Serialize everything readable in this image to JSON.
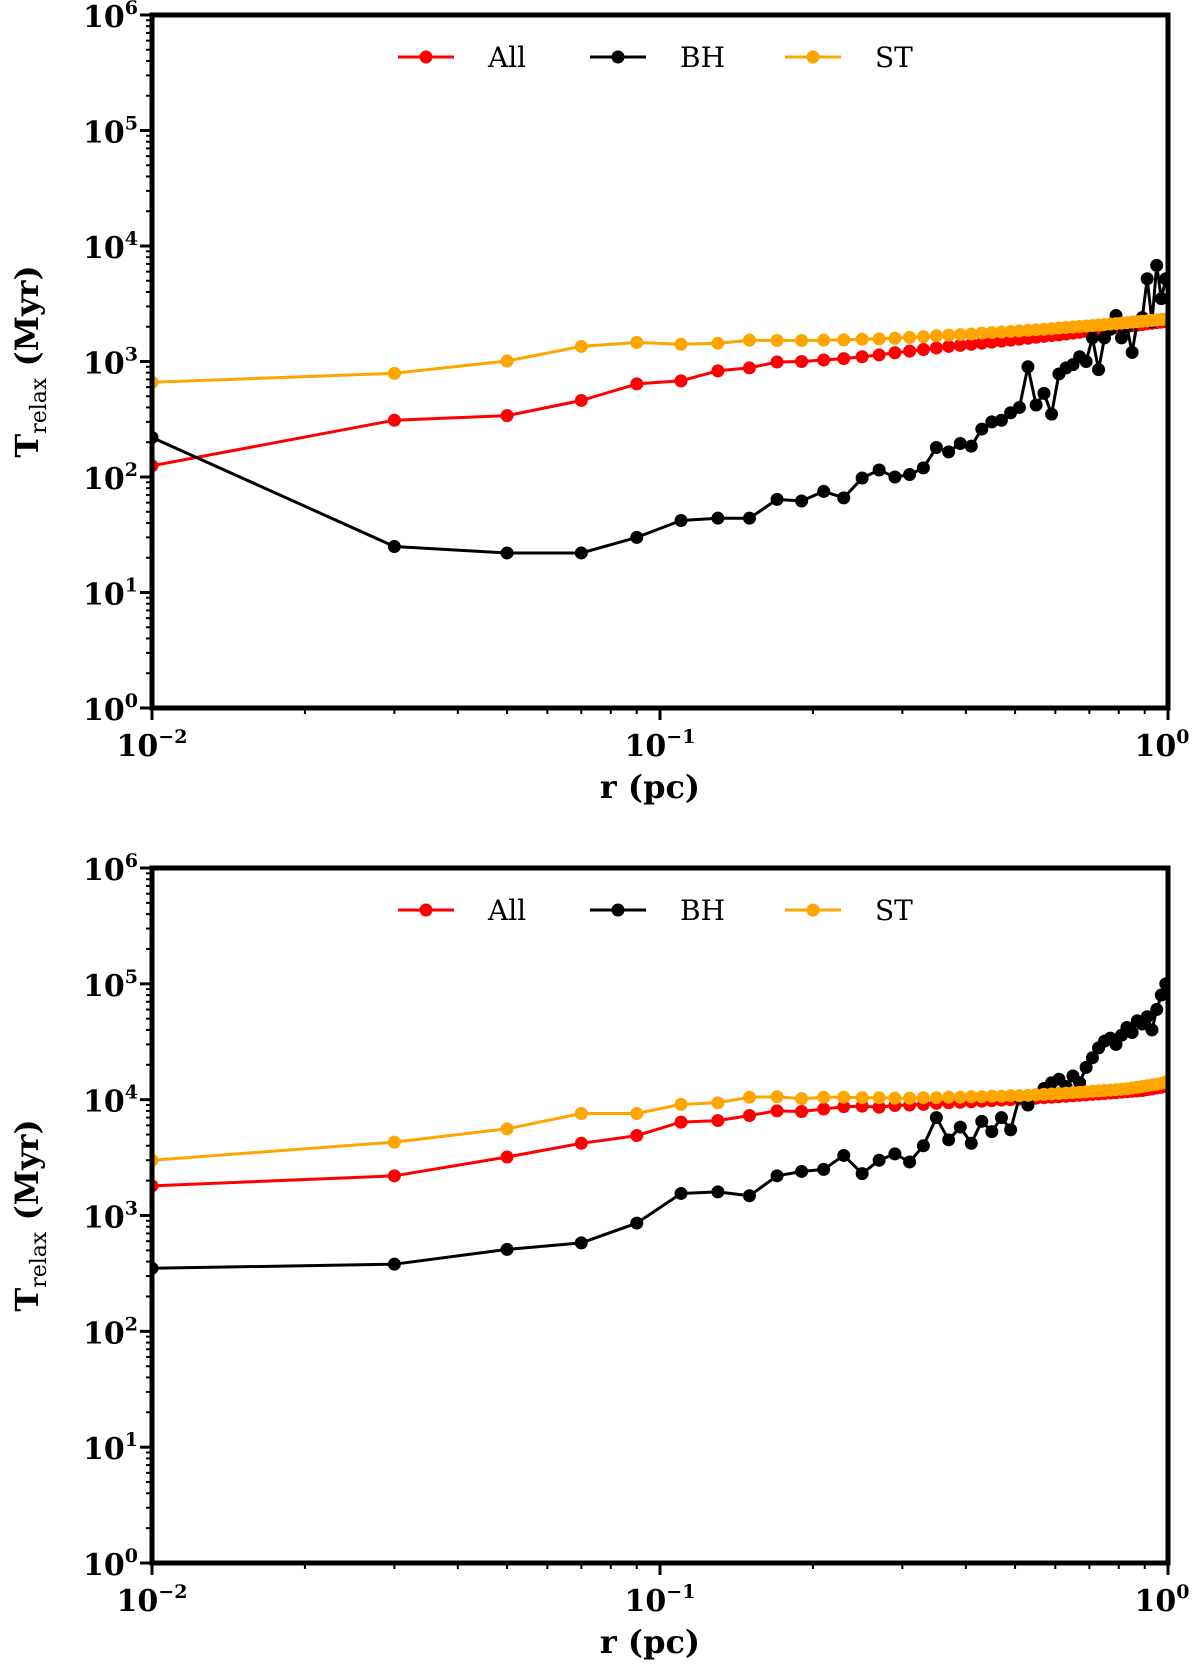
{
  "chart_data": [
    {
      "type": "line",
      "panel": "top",
      "title": "",
      "xlabel": "r (pc)",
      "ylabel_main": "T",
      "ylabel_sub": "relax",
      "ylabel_unit": "(Myr)",
      "xscale": "log",
      "yscale": "log",
      "xlim": [
        0.01,
        1
      ],
      "ylim": [
        1,
        1000000
      ],
      "x_ticks": [
        {
          "base": "10",
          "exp": "−2"
        },
        {
          "base": "10",
          "exp": "−1"
        },
        {
          "base": "10",
          "exp": "0"
        }
      ],
      "y_ticks": [
        {
          "base": "10",
          "exp": "0"
        },
        {
          "base": "10",
          "exp": "1"
        },
        {
          "base": "10",
          "exp": "2"
        },
        {
          "base": "10",
          "exp": "3"
        },
        {
          "base": "10",
          "exp": "4"
        },
        {
          "base": "10",
          "exp": "5"
        },
        {
          "base": "10",
          "exp": "6"
        }
      ],
      "legend_position": "upper-center",
      "series": [
        {
          "name": "All",
          "color": "#ff0000",
          "x": [
            0.01,
            0.03,
            0.05,
            0.07,
            0.09,
            0.11,
            0.13,
            0.15,
            0.17,
            0.19,
            0.21,
            0.23,
            0.25,
            0.27,
            0.29,
            0.31,
            0.33,
            0.35,
            0.37,
            0.39,
            0.41,
            0.43,
            0.45,
            0.47,
            0.49,
            0.51,
            0.53,
            0.55,
            0.57,
            0.59,
            0.61,
            0.63,
            0.65,
            0.67,
            0.69,
            0.71,
            0.73,
            0.75,
            0.77,
            0.79,
            0.81,
            0.83,
            0.85,
            0.87,
            0.89,
            0.91,
            0.93,
            0.95,
            0.97,
            0.99
          ],
          "y": [
            125,
            310,
            340,
            460,
            640,
            680,
            830,
            880,
            990,
            1000,
            1030,
            1060,
            1100,
            1140,
            1190,
            1230,
            1270,
            1310,
            1350,
            1380,
            1410,
            1440,
            1470,
            1500,
            1530,
            1560,
            1590,
            1620,
            1650,
            1680,
            1700,
            1730,
            1760,
            1790,
            1820,
            1840,
            1870,
            1900,
            1930,
            1960,
            1980,
            2010,
            2040,
            2060,
            2090,
            2120,
            2140,
            2170,
            2190,
            2220
          ]
        },
        {
          "name": "BH",
          "color": "#000000",
          "x": [
            0.01,
            0.03,
            0.05,
            0.07,
            0.09,
            0.11,
            0.13,
            0.15,
            0.17,
            0.19,
            0.21,
            0.23,
            0.25,
            0.27,
            0.29,
            0.31,
            0.33,
            0.35,
            0.37,
            0.39,
            0.41,
            0.43,
            0.45,
            0.47,
            0.49,
            0.51,
            0.53,
            0.55,
            0.57,
            0.59,
            0.61,
            0.63,
            0.65,
            0.67,
            0.69,
            0.71,
            0.73,
            0.75,
            0.77,
            0.79,
            0.81,
            0.83,
            0.85,
            0.87,
            0.89,
            0.91,
            0.93,
            0.95,
            0.97,
            0.99
          ],
          "y": [
            220,
            25,
            22,
            22,
            30,
            42,
            44,
            44,
            64,
            62,
            75,
            66,
            98,
            115,
            100,
            105,
            120,
            180,
            165,
            195,
            185,
            260,
            300,
            310,
            360,
            400,
            900,
            420,
            530,
            350,
            780,
            880,
            940,
            1100,
            1000,
            1600,
            850,
            1600,
            1900,
            2500,
            1600,
            2000,
            1200,
            2200,
            2400,
            5200,
            2200,
            6800,
            3500,
            5200
          ]
        },
        {
          "name": "ST",
          "color": "#ffa500",
          "x": [
            0.01,
            0.03,
            0.05,
            0.07,
            0.09,
            0.11,
            0.13,
            0.15,
            0.17,
            0.19,
            0.21,
            0.23,
            0.25,
            0.27,
            0.29,
            0.31,
            0.33,
            0.35,
            0.37,
            0.39,
            0.41,
            0.43,
            0.45,
            0.47,
            0.49,
            0.51,
            0.53,
            0.55,
            0.57,
            0.59,
            0.61,
            0.63,
            0.65,
            0.67,
            0.69,
            0.71,
            0.73,
            0.75,
            0.77,
            0.79,
            0.81,
            0.83,
            0.85,
            0.87,
            0.89,
            0.91,
            0.93,
            0.95,
            0.97,
            0.99
          ],
          "y": [
            660,
            790,
            1010,
            1350,
            1460,
            1410,
            1440,
            1530,
            1520,
            1520,
            1530,
            1540,
            1560,
            1570,
            1590,
            1620,
            1640,
            1670,
            1690,
            1710,
            1730,
            1760,
            1780,
            1800,
            1820,
            1840,
            1860,
            1880,
            1900,
            1920,
            1950,
            1970,
            1990,
            2010,
            2030,
            2050,
            2070,
            2090,
            2110,
            2130,
            2150,
            2170,
            2190,
            2210,
            2230,
            2250,
            2270,
            2290,
            2310,
            2330
          ]
        }
      ]
    },
    {
      "type": "line",
      "panel": "bottom",
      "title": "",
      "xlabel": "r (pc)",
      "ylabel_main": "T",
      "ylabel_sub": "relax",
      "ylabel_unit": "(Myr)",
      "xscale": "log",
      "yscale": "log",
      "xlim": [
        0.01,
        1
      ],
      "ylim": [
        1,
        1000000
      ],
      "x_ticks": [
        {
          "base": "10",
          "exp": "−2"
        },
        {
          "base": "10",
          "exp": "−1"
        },
        {
          "base": "10",
          "exp": "0"
        }
      ],
      "y_ticks": [
        {
          "base": "10",
          "exp": "0"
        },
        {
          "base": "10",
          "exp": "1"
        },
        {
          "base": "10",
          "exp": "2"
        },
        {
          "base": "10",
          "exp": "3"
        },
        {
          "base": "10",
          "exp": "4"
        },
        {
          "base": "10",
          "exp": "5"
        },
        {
          "base": "10",
          "exp": "6"
        }
      ],
      "legend_position": "upper-center",
      "series": [
        {
          "name": "All",
          "color": "#ff0000",
          "x": [
            0.01,
            0.03,
            0.05,
            0.07,
            0.09,
            0.11,
            0.13,
            0.15,
            0.17,
            0.19,
            0.21,
            0.23,
            0.25,
            0.27,
            0.29,
            0.31,
            0.33,
            0.35,
            0.37,
            0.39,
            0.41,
            0.43,
            0.45,
            0.47,
            0.49,
            0.51,
            0.53,
            0.55,
            0.57,
            0.59,
            0.61,
            0.63,
            0.65,
            0.67,
            0.69,
            0.71,
            0.73,
            0.75,
            0.77,
            0.79,
            0.81,
            0.83,
            0.85,
            0.87,
            0.89,
            0.91,
            0.93,
            0.95,
            0.97,
            0.99
          ],
          "y": [
            1800,
            2200,
            3200,
            4200,
            4900,
            6400,
            6600,
            7300,
            8000,
            7900,
            8300,
            8700,
            8800,
            8600,
            8900,
            9000,
            9100,
            9300,
            9400,
            9500,
            9600,
            9700,
            9800,
            9900,
            10000,
            10100,
            10200,
            10300,
            10400,
            10500,
            10600,
            10700,
            10800,
            10900,
            11000,
            11100,
            11200,
            11300,
            11400,
            11500,
            11600,
            11700,
            11800,
            11900,
            12000,
            12200,
            12400,
            12600,
            12800,
            13000
          ]
        },
        {
          "name": "BH",
          "color": "#000000",
          "x": [
            0.01,
            0.03,
            0.05,
            0.07,
            0.09,
            0.11,
            0.13,
            0.15,
            0.17,
            0.19,
            0.21,
            0.23,
            0.25,
            0.27,
            0.29,
            0.31,
            0.33,
            0.35,
            0.37,
            0.39,
            0.41,
            0.43,
            0.45,
            0.47,
            0.49,
            0.51,
            0.53,
            0.55,
            0.57,
            0.59,
            0.61,
            0.63,
            0.65,
            0.67,
            0.69,
            0.71,
            0.73,
            0.75,
            0.77,
            0.79,
            0.81,
            0.83,
            0.85,
            0.87,
            0.89,
            0.91,
            0.93,
            0.95,
            0.97,
            0.99
          ],
          "y": [
            350,
            380,
            510,
            580,
            860,
            1550,
            1600,
            1480,
            2200,
            2400,
            2500,
            3300,
            2300,
            3000,
            3400,
            2900,
            4000,
            7000,
            4500,
            5800,
            4200,
            6500,
            5300,
            7000,
            5500,
            10500,
            9000,
            11000,
            12500,
            14000,
            15000,
            13000,
            16000,
            14000,
            19000,
            23000,
            28000,
            32000,
            34000,
            30000,
            36000,
            42000,
            38000,
            48000,
            45000,
            52000,
            40000,
            60000,
            80000,
            100000
          ]
        },
        {
          "name": "ST",
          "color": "#ffa500",
          "x": [
            0.01,
            0.03,
            0.05,
            0.07,
            0.09,
            0.11,
            0.13,
            0.15,
            0.17,
            0.19,
            0.21,
            0.23,
            0.25,
            0.27,
            0.29,
            0.31,
            0.33,
            0.35,
            0.37,
            0.39,
            0.41,
            0.43,
            0.45,
            0.47,
            0.49,
            0.51,
            0.53,
            0.55,
            0.57,
            0.59,
            0.61,
            0.63,
            0.65,
            0.67,
            0.69,
            0.71,
            0.73,
            0.75,
            0.77,
            0.79,
            0.81,
            0.83,
            0.85,
            0.87,
            0.89,
            0.91,
            0.93,
            0.95,
            0.97,
            0.99
          ],
          "y": [
            3000,
            4300,
            5600,
            7600,
            7600,
            9100,
            9400,
            10500,
            10600,
            10200,
            10500,
            10500,
            10400,
            10400,
            10300,
            10300,
            10400,
            10400,
            10500,
            10500,
            10600,
            10600,
            10700,
            10700,
            10800,
            10800,
            10900,
            11000,
            11100,
            11200,
            11300,
            11400,
            11500,
            11600,
            11700,
            11800,
            11900,
            12000,
            12100,
            12200,
            12300,
            12400,
            12600,
            12800,
            13000,
            13200,
            13400,
            13600,
            13800,
            14200
          ]
        }
      ]
    }
  ]
}
